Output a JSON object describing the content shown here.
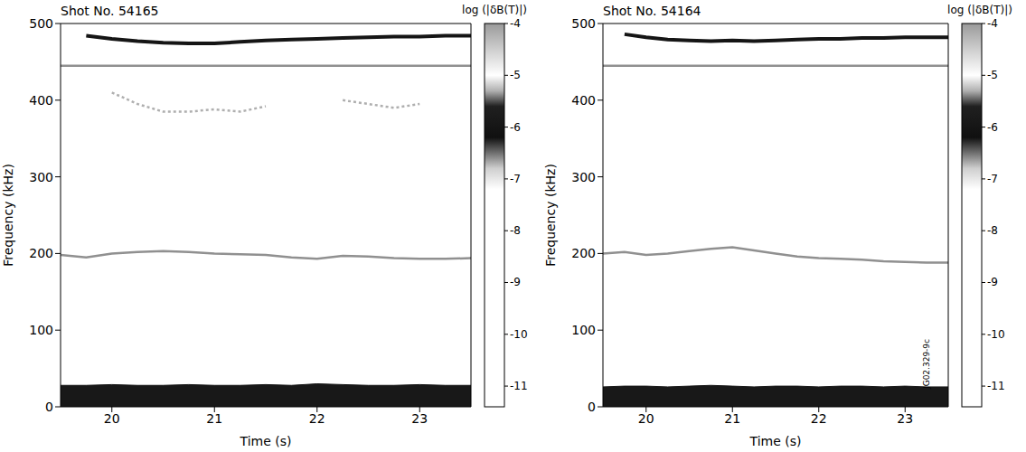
{
  "chart_data": [
    {
      "type": "spectrogram",
      "title": "Shot No. 54165",
      "x_label": "Time (s)",
      "y_label": "Frequency (kHz)",
      "xlim": [
        19.5,
        23.5
      ],
      "ylim": [
        0,
        500
      ],
      "xticks": [
        20,
        21,
        22,
        23
      ],
      "yticks": [
        0,
        100,
        200,
        300,
        400,
        500
      ],
      "x": [
        19.5,
        19.75,
        20,
        20.25,
        20.5,
        20.75,
        21,
        21.25,
        21.5,
        21.75,
        22,
        22.25,
        22.5,
        22.75,
        23,
        23.25,
        23.5
      ],
      "series": [
        {
          "type": "area",
          "level": -5.9,
          "values": [
            28,
            28,
            29,
            28,
            28,
            29,
            28,
            28,
            29,
            28,
            30,
            29,
            28,
            28,
            29,
            28,
            28
          ]
        },
        {
          "type": "line",
          "level": -6.6,
          "values": [
            198,
            195,
            200,
            202,
            203,
            202,
            200,
            199,
            198,
            195,
            193,
            197,
            196,
            194,
            193,
            193,
            194
          ]
        },
        {
          "type": "line",
          "level": -6.7,
          "values": [
            null,
            null,
            410,
            395,
            385,
            385,
            388,
            385,
            392,
            null,
            null,
            400,
            395,
            390,
            395,
            null,
            null
          ]
        },
        {
          "type": "line",
          "level": -6.6,
          "values": [
            445,
            445,
            445,
            445,
            445,
            445,
            445,
            445,
            445,
            445,
            445,
            445,
            445,
            445,
            445,
            445,
            445
          ]
        },
        {
          "type": "line",
          "level": -6.0,
          "values": [
            null,
            484,
            480,
            477,
            475,
            474,
            474,
            476,
            478,
            479,
            480,
            481,
            482,
            483,
            483,
            484,
            484
          ]
        }
      ],
      "colorbar": {
        "label": "log (|δB(T)|)",
        "range": [
          -11.4,
          -4
        ],
        "ticks": [
          -4,
          -5,
          -6,
          -7,
          -8,
          -9,
          -10,
          -11
        ]
      }
    },
    {
      "type": "spectrogram",
      "title": "Shot No. 54164",
      "x_label": "Time (s)",
      "y_label": "Frequency (kHz)",
      "xlim": [
        19.5,
        23.5
      ],
      "ylim": [
        0,
        500
      ],
      "xticks": [
        20,
        21,
        22,
        23
      ],
      "yticks": [
        0,
        100,
        200,
        300,
        400,
        500
      ],
      "x": [
        19.5,
        19.75,
        20,
        20.25,
        20.5,
        20.75,
        21,
        21.25,
        21.5,
        21.75,
        22,
        22.25,
        22.5,
        22.75,
        23,
        23.25,
        23.5
      ],
      "series": [
        {
          "type": "area",
          "level": -5.9,
          "values": [
            26,
            27,
            27,
            26,
            27,
            28,
            27,
            26,
            27,
            27,
            26,
            27,
            27,
            26,
            27,
            26,
            26
          ]
        },
        {
          "type": "line",
          "level": -6.6,
          "values": [
            200,
            202,
            198,
            200,
            203,
            206,
            208,
            204,
            200,
            196,
            194,
            193,
            192,
            190,
            189,
            188,
            188
          ]
        },
        {
          "type": "line",
          "level": -6.6,
          "values": [
            445,
            445,
            445,
            445,
            445,
            445,
            445,
            445,
            445,
            445,
            445,
            445,
            445,
            445,
            445,
            445,
            445
          ]
        },
        {
          "type": "line",
          "level": -6.0,
          "values": [
            null,
            486,
            482,
            479,
            478,
            477,
            478,
            477,
            478,
            479,
            480,
            480,
            481,
            481,
            482,
            482,
            482
          ]
        }
      ],
      "colorbar": {
        "label": "log (|δB(T)|)",
        "range": [
          -11.4,
          -4
        ],
        "ticks": [
          -4,
          -5,
          -6,
          -7,
          -8,
          -9,
          -10,
          -11
        ]
      },
      "annotations": [
        "JG02.329-9c"
      ]
    }
  ]
}
